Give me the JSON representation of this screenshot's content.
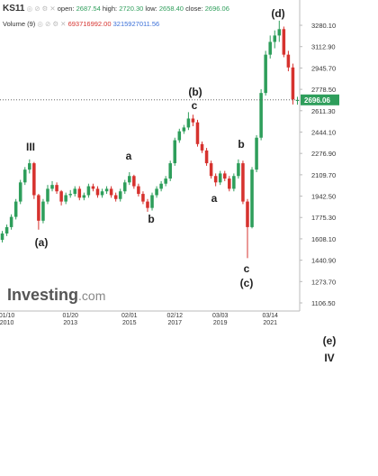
{
  "header": {
    "symbol": "KS11",
    "open_label": "open:",
    "open": "2687.54",
    "high_label": "high:",
    "high": "2720.30",
    "low_label": "low:",
    "low": "2658.40",
    "close_label": "close:",
    "close": "2696.06",
    "volume_label": "Volume (9)",
    "volume_1": "693716992.00",
    "volume_2": "3215927011.56"
  },
  "chart_data": {
    "type": "candlestick",
    "up_color": "#2e9e5b",
    "down_color": "#d6322e",
    "categories": [
      null,
      "01/10\n2010",
      null,
      null,
      null,
      null,
      null,
      null,
      null,
      null,
      null,
      null,
      null,
      null,
      null,
      "01/20\n2013",
      null,
      null,
      null,
      null,
      null,
      null,
      null,
      null,
      null,
      null,
      null,
      null,
      "02/01\n2015",
      null,
      null,
      null,
      null,
      null,
      null,
      null,
      null,
      null,
      "02/12\n2017",
      null,
      null,
      null,
      null,
      null,
      null,
      null,
      null,
      null,
      "03/03\n2019",
      null,
      null,
      null,
      null,
      null,
      null,
      null,
      null,
      null,
      null,
      "03/14\n2021",
      null,
      null,
      null,
      null,
      null,
      null
    ],
    "open": [
      1600,
      1650,
      1700,
      1780,
      1900,
      2050,
      2150,
      2200,
      1950,
      1750,
      1900,
      2000,
      2030,
      1980,
      1900,
      1950,
      1960,
      2000,
      1930,
      1950,
      2020,
      2000,
      1950,
      1980,
      2000,
      1950,
      1920,
      1980,
      2050,
      2100,
      2020,
      1960,
      1900,
      1850,
      1950,
      2000,
      2040,
      2080,
      2200,
      2380,
      2450,
      2480,
      2550,
      2520,
      2350,
      2300,
      2200,
      2100,
      2050,
      2120,
      2080,
      2000,
      2100,
      2200,
      1900,
      1700,
      2150,
      2400,
      2750,
      3050,
      3150,
      3200,
      3250,
      3050,
      2950,
      2687.54
    ],
    "high": [
      1670,
      1720,
      1800,
      1920,
      2070,
      2170,
      2230,
      2210,
      1960,
      1920,
      2030,
      2060,
      2050,
      1990,
      1970,
      1990,
      2020,
      2020,
      1970,
      2040,
      2040,
      2020,
      2000,
      2020,
      2020,
      1970,
      2000,
      2070,
      2130,
      2110,
      2040,
      1980,
      1920,
      1970,
      2020,
      2060,
      2100,
      2220,
      2400,
      2470,
      2500,
      2600,
      2580,
      2540,
      2370,
      2320,
      2220,
      2120,
      2140,
      2140,
      2100,
      2120,
      2230,
      2220,
      1920,
      2170,
      2420,
      2780,
      3080,
      3200,
      3240,
      3316,
      3270,
      3080,
      2980,
      2720.3
    ],
    "low": [
      1580,
      1630,
      1680,
      1760,
      1880,
      2030,
      2120,
      1920,
      1680,
      1730,
      1880,
      1980,
      1960,
      1870,
      1880,
      1930,
      1940,
      1910,
      1910,
      1930,
      1980,
      1930,
      1930,
      1960,
      1930,
      1900,
      1900,
      1960,
      2030,
      2000,
      1940,
      1880,
      1820,
      1830,
      1930,
      1980,
      2020,
      2060,
      2180,
      2360,
      2430,
      2460,
      2490,
      2330,
      2280,
      2180,
      2080,
      2020,
      2030,
      2060,
      1980,
      1980,
      2080,
      1880,
      1457,
      1690,
      2130,
      2380,
      2730,
      3020,
      3100,
      3150,
      3030,
      2920,
      2660,
      2658.4
    ],
    "close": [
      1650,
      1700,
      1780,
      1900,
      2050,
      2150,
      2200,
      1950,
      1750,
      1900,
      2000,
      2030,
      1980,
      1900,
      1950,
      1960,
      2000,
      1930,
      1950,
      2020,
      2000,
      1950,
      1980,
      2000,
      1950,
      1920,
      1980,
      2050,
      2100,
      2020,
      1960,
      1900,
      1850,
      1950,
      2000,
      2040,
      2080,
      2200,
      2380,
      2450,
      2480,
      2550,
      2520,
      2350,
      2300,
      2200,
      2100,
      2050,
      2120,
      2080,
      2000,
      2100,
      2200,
      1900,
      1700,
      2150,
      2400,
      2750,
      3050,
      3150,
      3200,
      3250,
      3050,
      2950,
      2700,
      2696.06
    ],
    "ylim": [
      1043,
      3478
    ],
    "yticks": [
      {
        "value": 1106.5,
        "label": "1106.50"
      },
      {
        "value": 1273.7,
        "label": "1273.70"
      },
      {
        "value": 1440.9,
        "label": "1440.90"
      },
      {
        "value": 1608.1,
        "label": "1608.10"
      },
      {
        "value": 1775.3,
        "label": "1775.30"
      },
      {
        "value": 1942.5,
        "label": "1942.50"
      },
      {
        "value": 2109.7,
        "label": "2109.70"
      },
      {
        "value": 2276.9,
        "label": "2276.90"
      },
      {
        "value": 2444.1,
        "label": "2444.10"
      },
      {
        "value": 2611.3,
        "label": "2611.30"
      },
      {
        "value": 2778.5,
        "label": "2778.50"
      },
      {
        "value": 2945.7,
        "label": "2945.70"
      },
      {
        "value": 3112.9,
        "label": "3112.90"
      },
      {
        "value": 3280.1,
        "label": "3280.10"
      }
    ],
    "price_tag": {
      "value": 2696.06,
      "label": "2696.06"
    },
    "watermark": [
      "Investing",
      ".com"
    ],
    "annotations": [
      "III",
      "(a)",
      "a",
      "b",
      "(b)",
      "c",
      "a",
      "b",
      "c",
      "(c)",
      "(d)",
      "(e)",
      "IV"
    ]
  }
}
